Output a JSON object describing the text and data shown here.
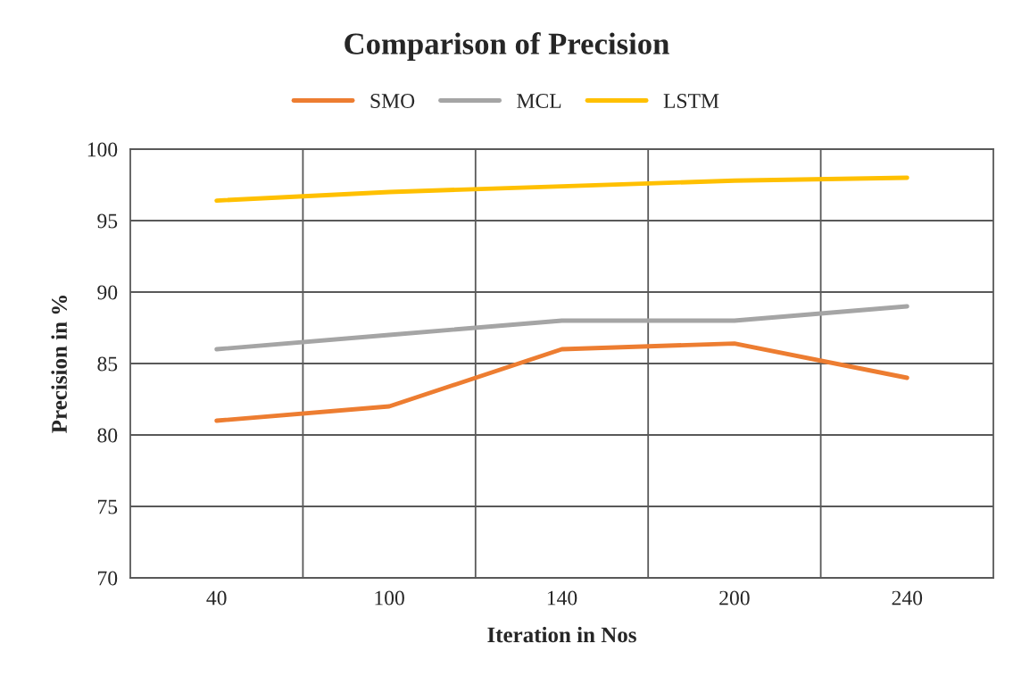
{
  "chart_data": {
    "type": "line",
    "title": "Comparison of Precision",
    "xlabel": "Iteration in Nos",
    "ylabel": "Precision in %",
    "categories": [
      "40",
      "100",
      "140",
      "200",
      "240"
    ],
    "series": [
      {
        "name": "SMO",
        "color": "#ed7d31",
        "values": [
          81,
          82,
          86,
          86.4,
          84
        ]
      },
      {
        "name": "MCL",
        "color": "#a5a5a5",
        "values": [
          86,
          87,
          88,
          88,
          89
        ]
      },
      {
        "name": "LSTM",
        "color": "#ffc000",
        "values": [
          96.4,
          97,
          97.4,
          97.8,
          98
        ]
      }
    ],
    "ylim": [
      70,
      100
    ],
    "yticks": [
      70,
      75,
      80,
      85,
      90,
      95,
      100
    ],
    "grid": true,
    "legend": "top",
    "marker": "none",
    "line_style": "solid"
  }
}
